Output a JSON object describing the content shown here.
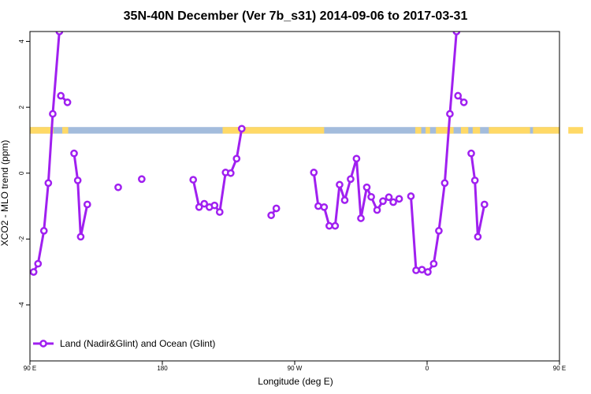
{
  "chart_data": {
    "type": "line",
    "title": "35N-40N December (Ver 7b_s31)   2014-09-06 to 2017-03-31",
    "xlabel": "Longitude (deg E)",
    "ylabel": "XCO2 - MLO trend (ppm)",
    "xlim": [
      90,
      450
    ],
    "ylim": [
      -5.7,
      4.3
    ],
    "x_ticks": [
      {
        "value": 90,
        "label": "90 E"
      },
      {
        "value": 180,
        "label": "180"
      },
      {
        "value": 270,
        "label": "90 W"
      },
      {
        "value": 360,
        "label": "0"
      },
      {
        "value": 450,
        "label": "90 E"
      },
      {
        "value": 540,
        "label": "180"
      }
    ],
    "y_ticks": [
      {
        "value": 4,
        "label": "4"
      },
      {
        "value": 2,
        "label": "2"
      },
      {
        "value": 0,
        "label": "0"
      },
      {
        "value": -2,
        "label": "-2"
      },
      {
        "value": -4,
        "label": "-4"
      }
    ],
    "colors": {
      "series": "#a020f0",
      "land": "#ffd966",
      "ocean": "#a3bcdc"
    },
    "land_mask": {
      "y_range": [
        1.2,
        1.4
      ],
      "land_segments": [
        [
          90,
          106
        ],
        [
          112,
          116
        ],
        [
          221,
          290
        ],
        [
          352,
          356
        ],
        [
          359,
          362
        ],
        [
          366,
          378
        ],
        [
          383,
          388
        ],
        [
          391,
          396
        ],
        [
          402,
          430
        ],
        [
          432,
          450
        ],
        [
          456,
          466
        ],
        [
          472,
          476
        ]
      ]
    },
    "series": [
      {
        "name": "Land (Nadir&Glint) and Ocean (Glint)",
        "segments": [
          [
            [
              92.5,
              -3.0
            ],
            [
              95.5,
              -2.75
            ],
            [
              99.5,
              -1.75
            ],
            [
              102.5,
              -0.3
            ],
            [
              105.5,
              1.8
            ],
            [
              110,
              4.3
            ]
          ],
          [
            [
              111,
              2.35
            ],
            [
              115.5,
              2.15
            ]
          ],
          [
            [
              120,
              0.6
            ],
            [
              122.5,
              -0.22
            ],
            [
              124.5,
              -1.93
            ],
            [
              129,
              -0.95
            ]
          ],
          [
            [
              150,
              -0.43
            ]
          ],
          [
            [
              166,
              -0.18
            ]
          ],
          [
            [
              201,
              -0.2
            ],
            [
              205,
              -1.03
            ],
            [
              208.5,
              -0.93
            ],
            [
              212,
              -1.03
            ],
            [
              215.5,
              -0.98
            ],
            [
              219,
              -1.18
            ],
            [
              223,
              0.02
            ],
            [
              226.5,
              0.0
            ],
            [
              230.5,
              0.44
            ],
            [
              234,
              1.35
            ]
          ],
          [
            [
              254,
              -1.28
            ],
            [
              257.5,
              -1.07
            ]
          ],
          [
            [
              283,
              0.02
            ],
            [
              286,
              -1.0
            ],
            [
              290,
              -1.03
            ],
            [
              293.5,
              -1.6
            ],
            [
              297.5,
              -1.6
            ],
            [
              300.5,
              -0.35
            ],
            [
              304,
              -0.82
            ],
            [
              308,
              -0.18
            ],
            [
              312,
              0.44
            ],
            [
              315,
              -1.37
            ],
            [
              319,
              -0.43
            ],
            [
              322,
              -0.72
            ],
            [
              326,
              -1.12
            ],
            [
              330,
              -0.85
            ],
            [
              334,
              -0.73
            ],
            [
              337,
              -0.88
            ],
            [
              341,
              -0.78
            ]
          ],
          [
            [
              349,
              -0.7
            ],
            [
              352.5,
              -2.95
            ],
            [
              356.5,
              -2.93
            ],
            [
              360.5,
              -3.0
            ],
            [
              364.5,
              -2.75
            ],
            [
              368,
              -1.75
            ],
            [
              372,
              -0.3
            ],
            [
              375.5,
              1.8
            ],
            [
              380,
              4.3
            ]
          ],
          [
            [
              381,
              2.35
            ],
            [
              385,
              2.15
            ]
          ],
          [
            [
              390,
              0.6
            ],
            [
              392.5,
              -0.22
            ],
            [
              394.5,
              -1.93
            ],
            [
              399,
              -0.95
            ]
          ]
        ]
      }
    ],
    "legend": {
      "position": "bottom-left",
      "entries": [
        "Land (Nadir&Glint) and Ocean (Glint)"
      ]
    },
    "grid": false
  }
}
